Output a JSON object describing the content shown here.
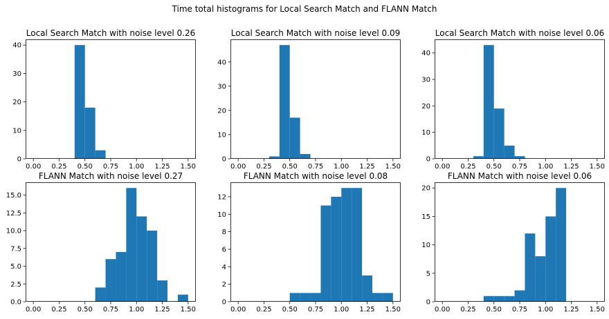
{
  "figure": {
    "suptitle": "Time total histograms for Local Search Match and FLANN Match",
    "bar_color": "#1f77b4"
  },
  "chart_data": [
    {
      "type": "bar",
      "title": "Local Search Match with noise level 0.26",
      "bin_width": 0.1,
      "bin_starts": [
        0.4,
        0.5,
        0.6
      ],
      "values": [
        40,
        18,
        3
      ],
      "xlim": [
        -0.075,
        1.575
      ],
      "ylim": [
        0,
        42
      ],
      "xticks": [
        0.0,
        0.25,
        0.5,
        0.75,
        1.0,
        1.25,
        1.5
      ],
      "xtick_labels": [
        "0.00",
        "0.25",
        "0.50",
        "0.75",
        "1.00",
        "1.25",
        "1.50"
      ],
      "yticks": [
        0,
        10,
        20,
        30,
        40
      ],
      "ytick_labels": [
        "0",
        "10",
        "20",
        "30",
        "40"
      ]
    },
    {
      "type": "bar",
      "title": "Local Search Match with noise level 0.09",
      "bin_width": 0.1,
      "bin_starts": [
        0.3,
        0.4,
        0.5,
        0.6
      ],
      "values": [
        1,
        47,
        17,
        2
      ],
      "xlim": [
        -0.075,
        1.575
      ],
      "ylim": [
        0,
        49.35
      ],
      "xticks": [
        0.0,
        0.25,
        0.5,
        0.75,
        1.0,
        1.25,
        1.5
      ],
      "xtick_labels": [
        "0.00",
        "0.25",
        "0.50",
        "0.75",
        "1.00",
        "1.25",
        "1.50"
      ],
      "yticks": [
        0,
        10,
        20,
        30,
        40
      ],
      "ytick_labels": [
        "0",
        "10",
        "20",
        "30",
        "40"
      ]
    },
    {
      "type": "bar",
      "title": "Local Search Match with noise level 0.06",
      "bin_width": 0.1,
      "bin_starts": [
        0.3,
        0.4,
        0.5,
        0.6,
        0.7
      ],
      "values": [
        1,
        43,
        19,
        5,
        1
      ],
      "xlim": [
        -0.075,
        1.575
      ],
      "ylim": [
        0,
        45.15
      ],
      "xticks": [
        0.0,
        0.25,
        0.5,
        0.75,
        1.0,
        1.25,
        1.5
      ],
      "xtick_labels": [
        "0.00",
        "0.25",
        "0.50",
        "0.75",
        "1.00",
        "1.25",
        "1.50"
      ],
      "yticks": [
        0,
        10,
        20,
        30,
        40
      ],
      "ytick_labels": [
        "0",
        "10",
        "20",
        "30",
        "40"
      ]
    },
    {
      "type": "bar",
      "title": "FLANN Match with noise level 0.27",
      "bin_width": 0.1,
      "bin_starts": [
        0.6,
        0.7,
        0.8,
        0.9,
        1.0,
        1.1,
        1.2,
        1.3,
        1.4
      ],
      "values": [
        2,
        6,
        7,
        16,
        12,
        10,
        3,
        0,
        1
      ],
      "xlim": [
        -0.075,
        1.575
      ],
      "ylim": [
        0,
        16.8
      ],
      "xticks": [
        0.0,
        0.25,
        0.5,
        0.75,
        1.0,
        1.25,
        1.5
      ],
      "xtick_labels": [
        "0.00",
        "0.25",
        "0.50",
        "0.75",
        "1.00",
        "1.25",
        "1.50"
      ],
      "yticks": [
        0,
        2.5,
        5,
        7.5,
        10,
        12.5,
        15
      ],
      "ytick_labels": [
        "0.0",
        "2.5",
        "5.0",
        "7.5",
        "10.0",
        "12.5",
        "15.0"
      ]
    },
    {
      "type": "bar",
      "title": "FLANN Match with noise level 0.08",
      "bin_width": 0.1,
      "bin_starts": [
        0.5,
        0.6,
        0.7,
        0.8,
        0.9,
        1.0,
        1.1,
        1.2,
        1.3,
        1.4
      ],
      "values": [
        1,
        1,
        1,
        11,
        12,
        13,
        13,
        3,
        1,
        1
      ],
      "xlim": [
        -0.075,
        1.575
      ],
      "ylim": [
        0,
        13.65
      ],
      "xticks": [
        0.0,
        0.25,
        0.5,
        0.75,
        1.0,
        1.25,
        1.5
      ],
      "xtick_labels": [
        "0.00",
        "0.25",
        "0.50",
        "0.75",
        "1.00",
        "1.25",
        "1.50"
      ],
      "yticks": [
        0,
        2,
        4,
        6,
        8,
        10,
        12
      ],
      "ytick_labels": [
        "0",
        "2",
        "4",
        "6",
        "8",
        "10",
        "12"
      ]
    },
    {
      "type": "bar",
      "title": "FLANN Match with noise level 0.06",
      "bin_width": 0.1,
      "bin_starts": [
        0.4,
        0.5,
        0.6,
        0.7,
        0.8,
        0.9,
        1.0,
        1.1
      ],
      "values": [
        1,
        1,
        1,
        2,
        12,
        8,
        15,
        20
      ],
      "xlim": [
        -0.075,
        1.575
      ],
      "ylim": [
        0,
        21
      ],
      "xticks": [
        0.0,
        0.25,
        0.5,
        0.75,
        1.0,
        1.25,
        1.5
      ],
      "xtick_labels": [
        "0.00",
        "0.25",
        "0.50",
        "0.75",
        "1.00",
        "1.25",
        "1.50"
      ],
      "yticks": [
        0,
        5,
        10,
        15,
        20
      ],
      "ytick_labels": [
        "0",
        "5",
        "10",
        "15",
        "20"
      ]
    }
  ]
}
